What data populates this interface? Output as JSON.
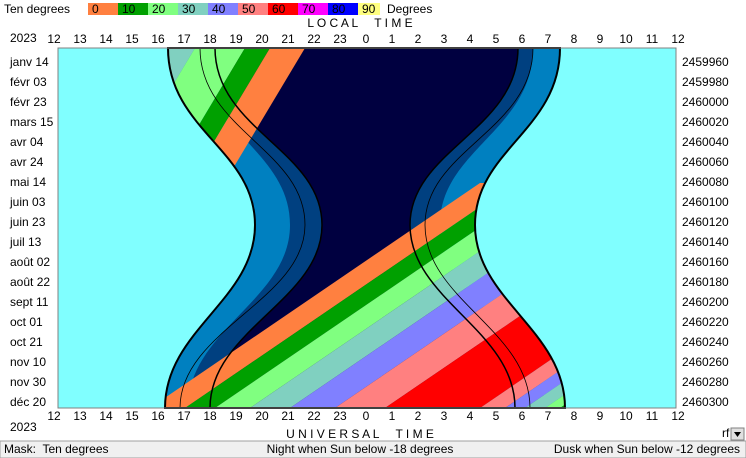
{
  "legend": {
    "label": "Ten degrees",
    "ticks": [
      "0",
      "10",
      "20",
      "30",
      "40",
      "50",
      "60",
      "70",
      "80",
      "90"
    ],
    "unit": "Degrees"
  },
  "top_axis": {
    "title": "L O C A L     T I M E",
    "year": "2023",
    "hours": [
      "12",
      "13",
      "14",
      "15",
      "16",
      "17",
      "18",
      "19",
      "20",
      "21",
      "22",
      "23",
      "0",
      "1",
      "2",
      "3",
      "4",
      "5",
      "6",
      "7",
      "8",
      "9",
      "10",
      "11",
      "12"
    ]
  },
  "bottom_axis": {
    "title": "U N I V E R S A L     T I M E",
    "year": "2023",
    "hours": [
      "12",
      "13",
      "14",
      "15",
      "16",
      "17",
      "18",
      "19",
      "20",
      "21",
      "22",
      "23",
      "0",
      "1",
      "2",
      "3",
      "4",
      "5",
      "6",
      "7",
      "8",
      "9",
      "10",
      "11",
      "12"
    ]
  },
  "dates": [
    "janv 14",
    "févr 03",
    "févr 23",
    "mars 15",
    "avr 04",
    "avr 24",
    "mai 14",
    "juin 03",
    "juin 23",
    "juil 13",
    "août 02",
    "août 22",
    "sept 11",
    "oct 01",
    "oct 21",
    "nov 10",
    "nov 30",
    "déc 20"
  ],
  "julian_days": [
    "2459960",
    "2459980",
    "2460000",
    "2460020",
    "2460040",
    "2460060",
    "2460080",
    "2460100",
    "2460120",
    "2460140",
    "2460160",
    "2460180",
    "2460200",
    "2460220",
    "2460240",
    "2460260",
    "2460280",
    "2460300"
  ],
  "corner_label": "rf",
  "status_bar": {
    "mask": "Mask:  Ten degrees",
    "night": "Night when Sun below -18 degrees",
    "dusk": "Dusk when Sun below -12 degrees"
  }
}
